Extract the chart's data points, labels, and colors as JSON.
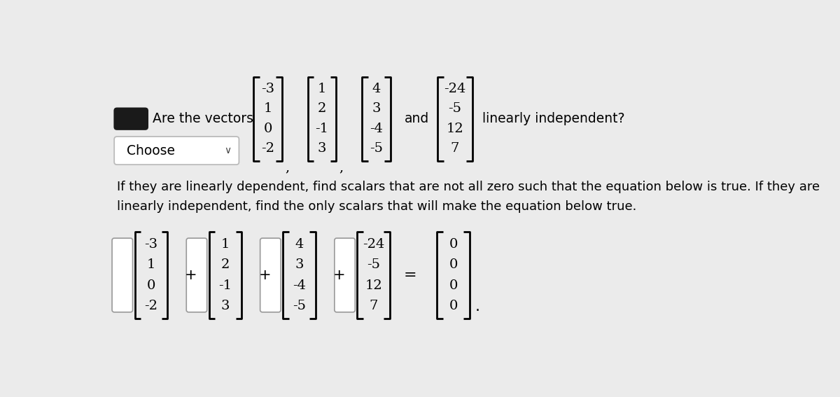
{
  "background_color": "#ebebeb",
  "title_text": "Are the vectors",
  "vectors_top": [
    [
      "-3",
      "1",
      "0",
      "-2"
    ],
    [
      "1",
      "2",
      "-1",
      "3"
    ],
    [
      "4",
      "3",
      "-4",
      "-5"
    ]
  ],
  "vector_and": [
    "-24",
    "-5",
    "12",
    "7"
  ],
  "after_and_text": "linearly independent?",
  "choose_text": "Choose",
  "paragraph_line1": "If they are linearly dependent, find scalars that are not all zero such that the equation below is true. If they are",
  "paragraph_line2": "linearly independent, find the only scalars that will make the equation below true.",
  "vectors_bottom": [
    [
      "-3",
      "1",
      "0",
      "-2"
    ],
    [
      "1",
      "2",
      "-1",
      "3"
    ],
    [
      "4",
      "3",
      "-4",
      "-5"
    ],
    [
      "-24",
      "-5",
      "12",
      "7"
    ]
  ],
  "zero_vector": [
    "0",
    "0",
    "0",
    "0"
  ]
}
